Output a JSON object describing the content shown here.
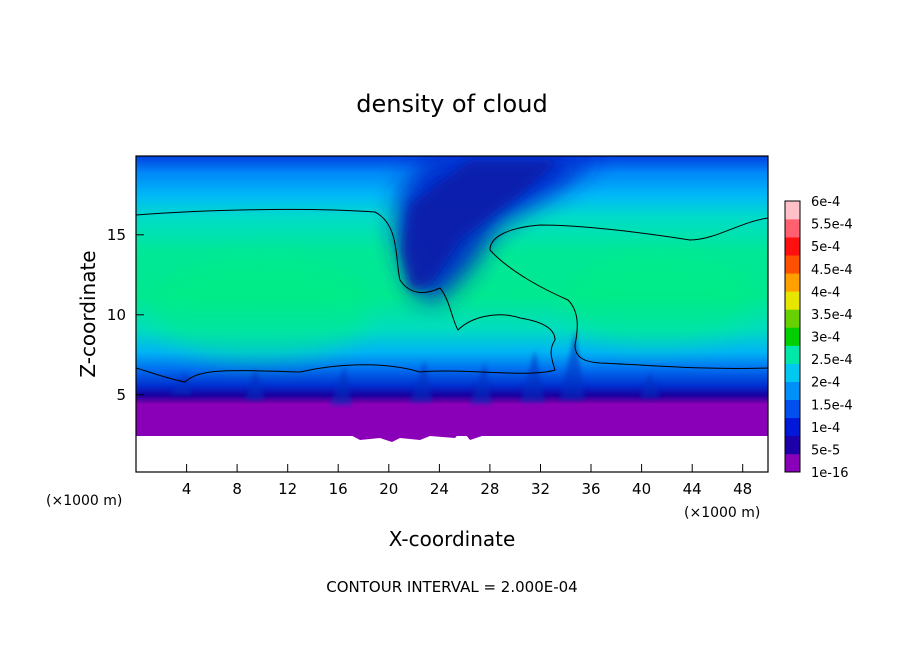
{
  "chart_data": {
    "type": "heatmap",
    "title": "density of cloud",
    "xlabel": "X-coordinate",
    "ylabel": "Z-coordinate",
    "x_unit": "(×1000 m)",
    "y_unit": "(×1000 m)",
    "xlim": [
      0,
      50
    ],
    "ylim": [
      0,
      20
    ],
    "x_ticks": [
      4,
      8,
      12,
      16,
      20,
      24,
      28,
      32,
      36,
      40,
      44,
      48
    ],
    "y_ticks": [
      5,
      10,
      15
    ],
    "footnote": "CONTOUR INTERVAL = 2.000E-04",
    "colorbar": {
      "labels": [
        "6e-4",
        "5.5e-4",
        "5e-4",
        "4.5e-4",
        "4e-4",
        "3.5e-4",
        "3e-4",
        "2.5e-4",
        "2e-4",
        "1.5e-4",
        "1e-4",
        "5e-5",
        "1e-16"
      ],
      "colors": [
        "#8a00b8",
        "#1e00a8",
        "#0018d8",
        "#0050f0",
        "#0090f8",
        "#00c8f0",
        "#00e8a8",
        "#00d000",
        "#66d000",
        "#e6e600",
        "#ffa000",
        "#ff5000",
        "#ff1010",
        "#ff6070",
        "#ffc0c8"
      ]
    },
    "cloud_layer": {
      "base_z": 2.5,
      "top_z": 19.7,
      "contour_2e-4": {
        "left_region_top_z": 16.4,
        "right_region_top_z": 15.6,
        "lower_boundary_z": 6.5
      }
    }
  }
}
